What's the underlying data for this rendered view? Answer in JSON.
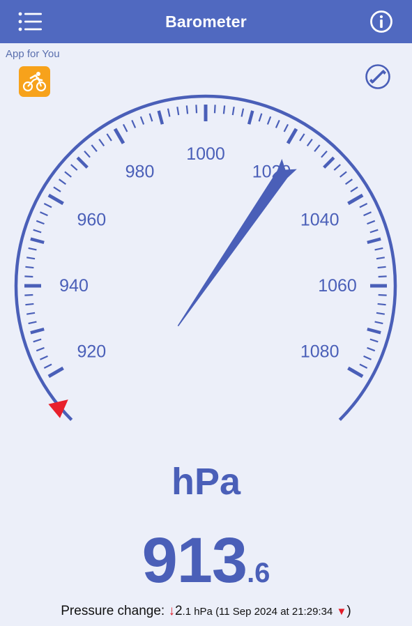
{
  "header": {
    "title": "Barometer",
    "menu_icon": "hamburger-menu-icon",
    "info_icon": "info-icon"
  },
  "promo": {
    "label": "App for You",
    "icon": "cyclist-icon",
    "icon_color": "#f7a21b"
  },
  "calibrate_icon": "wrench-icon",
  "gauge": {
    "labels": [
      "920",
      "940",
      "960",
      "980",
      "1000",
      "1020",
      "1040",
      "1060",
      "1080"
    ],
    "min": 910,
    "max": 1090,
    "needle_value": 1023,
    "marker_value": 913.6,
    "marker_color": "#e8202c",
    "accent_color": "#4a5fb8"
  },
  "unit": "hPa",
  "reading": {
    "integer": "913",
    "decimal": ".6"
  },
  "pressure_change": {
    "label": "Pressure change:",
    "arrow": "↓",
    "value_main": "2",
    "value_rest": ".1 hPa (11 Sep 2024 at 21:29:34",
    "trend_symbol": "▼",
    "close": ")"
  }
}
